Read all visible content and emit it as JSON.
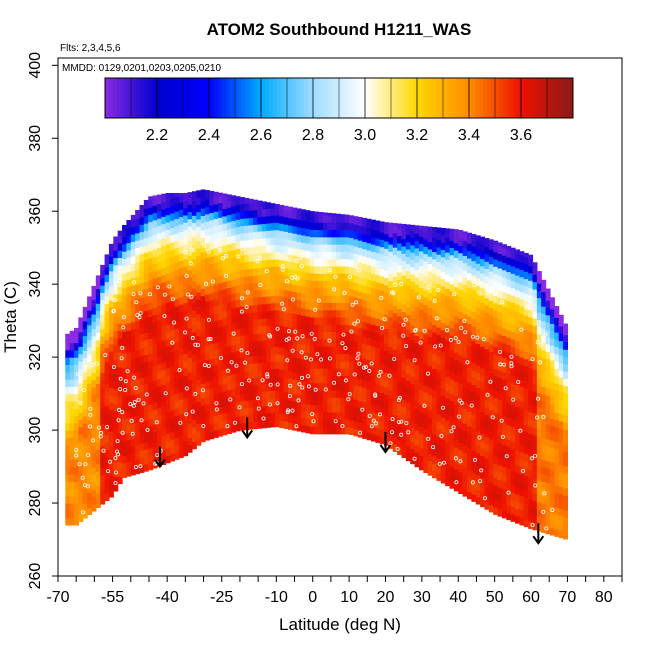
{
  "chart_data": {
    "type": "heatmap",
    "title": "ATOM2 Southbound H1211_WAS",
    "flights_note": "Flts: 2,3,4,5,6",
    "dates_note": "MMDD: 0129,0201,0203,0205,0210",
    "xlabel": "Latitude (deg N)",
    "ylabel": "Theta (C)",
    "xlim": [
      -70,
      85
    ],
    "ylim": [
      260,
      402
    ],
    "x_tick_labels": [
      -70,
      -55,
      -40,
      -25,
      -10,
      0,
      10,
      20,
      30,
      40,
      50,
      60,
      70,
      80
    ],
    "y_tick_labels": [
      260,
      280,
      300,
      320,
      340,
      360,
      380,
      400
    ],
    "colorbar": {
      "range": [
        2.0,
        3.8
      ],
      "tick_labels": [
        2.2,
        2.4,
        2.6,
        2.8,
        3.0,
        3.2,
        3.4,
        3.6
      ],
      "stops": [
        {
          "value": 2.0,
          "color": "#8a2be2"
        },
        {
          "value": 2.2,
          "color": "#0000cd"
        },
        {
          "value": 2.4,
          "color": "#0000ff"
        },
        {
          "value": 2.6,
          "color": "#00aaff"
        },
        {
          "value": 2.8,
          "color": "#9fdcff"
        },
        {
          "value": 3.0,
          "color": "#ffffff"
        },
        {
          "value": 3.2,
          "color": "#ffd700"
        },
        {
          "value": 3.4,
          "color": "#ff8c00"
        },
        {
          "value": 3.6,
          "color": "#ee1100"
        },
        {
          "value": 3.8,
          "color": "#8b1a1a"
        }
      ]
    },
    "surface": {
      "lat": [
        -68,
        -65,
        -55,
        -52,
        -45,
        -40,
        -35,
        -30,
        -20,
        -10,
        0,
        10,
        20,
        30,
        40,
        50,
        60,
        70
      ],
      "theta_top": [
        326,
        328,
        352,
        356,
        364,
        365,
        365,
        366,
        364,
        362,
        360,
        359,
        357,
        356,
        355,
        352,
        348,
        328
      ],
      "theta_bottom": [
        274,
        274,
        282,
        287,
        289,
        291,
        293,
        297,
        300,
        301,
        299,
        299,
        296,
        289,
        283,
        277,
        273,
        270
      ]
    },
    "arrows": [
      {
        "lat": -42,
        "theta": 290
      },
      {
        "lat": -18,
        "theta": 298
      },
      {
        "lat": 20,
        "theta": 294
      },
      {
        "lat": 62,
        "theta": 269
      }
    ]
  }
}
